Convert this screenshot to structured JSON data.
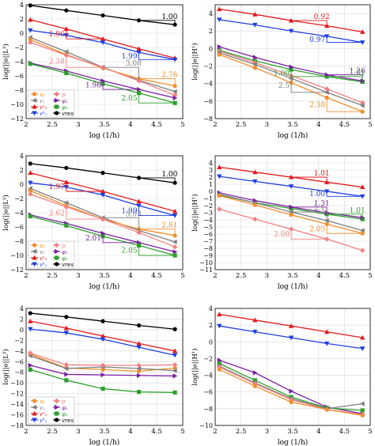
{
  "colors": {
    "u": "#f28e2b",
    "p": "#f28080",
    "v": "#7f7f7f",
    "phi1": "#7b1fa2",
    "phi": "#2ca02c",
    "vres": "#000000",
    "vA2": "#e41a1c",
    "vB1": "#1f3fe0"
  },
  "legend": {
    "u": "u₁",
    "p": "p",
    "v": "v₁",
    "phi1": "φ₁",
    "phi": "φ₀",
    "vres": "vres",
    "vA2": "vᵃ₂",
    "vB1": "vᵇ₁"
  },
  "chart_data": [
    {
      "type": "line",
      "xlabel": "log (1/h)",
      "ylabel": "log(||e||L²)",
      "xlim": [
        2,
        5
      ],
      "ylim": [
        -12,
        4
      ],
      "xticks": [
        "2",
        "2.5",
        "3",
        "3.5",
        "4",
        "4.5",
        "5"
      ],
      "yticks": [
        "4",
        "2",
        "0",
        "−2",
        "−4",
        "−6",
        "−8",
        "−10",
        "−12"
      ],
      "legend": true,
      "x": [
        2.08,
        2.77,
        3.47,
        4.16,
        4.85
      ],
      "series": [
        {
          "key": "vres",
          "values": [
            3.9,
            3.2,
            2.5,
            1.8,
            1.2
          ]
        },
        {
          "key": "vA2",
          "values": [
            1.9,
            0.6,
            -0.8,
            -2.2,
            -3.5
          ]
        },
        {
          "key": "vB1",
          "values": [
            0.4,
            -0.3,
            -1.3,
            -2.7,
            -3.7
          ]
        },
        {
          "key": "v",
          "values": [
            -0.6,
            -2.6,
            -4.8,
            -6.6,
            -8.2
          ]
        },
        {
          "key": "u",
          "values": [
            -0.9,
            -3.0,
            -4.9,
            -6.4,
            -7.4
          ]
        },
        {
          "key": "p",
          "values": [
            -1.3,
            -3.1,
            -4.8,
            -6.7,
            -8.7
          ]
        },
        {
          "key": "phi1",
          "values": [
            -4.2,
            -5.3,
            -6.7,
            -7.9,
            -9.1
          ]
        },
        {
          "key": "phi",
          "values": [
            -4.3,
            -5.6,
            -7.1,
            -8.4,
            -9.8
          ]
        }
      ],
      "rates": [
        "1.00",
        "1.96",
        "3.08",
        "1.99",
        "2.38",
        "2.76",
        "1.96",
        "2.05"
      ]
    },
    {
      "type": "line",
      "xlabel": "log (1/h)",
      "ylabel": "log(||e||H¹)",
      "xlim": [
        2,
        5
      ],
      "ylim": [
        -8,
        5
      ],
      "xticks": [
        "2",
        "2.5",
        "3",
        "3.5",
        "4",
        "4.5",
        "5"
      ],
      "yticks": [
        "4",
        "2",
        "0",
        "−2",
        "−4",
        "−6",
        "−8"
      ],
      "legend": false,
      "x": [
        2.08,
        2.77,
        3.47,
        4.16,
        4.85
      ],
      "series": [
        {
          "key": "vA2",
          "values": [
            4.5,
            3.9,
            3.2,
            2.6,
            1.9
          ]
        },
        {
          "key": "vB1",
          "values": [
            3.3,
            2.7,
            2.0,
            1.4,
            0.7
          ]
        },
        {
          "key": "phi",
          "values": [
            -0.2,
            -1.4,
            -2.4,
            -3.2,
            -3.8
          ]
        },
        {
          "key": "phi1",
          "values": [
            0.2,
            -1.0,
            -2.1,
            -3.0,
            -3.7
          ]
        },
        {
          "key": "p",
          "values": [
            -0.3,
            -1.6,
            -3.1,
            -4.6,
            -6.2
          ]
        },
        {
          "key": "v",
          "values": [
            -0.5,
            -1.8,
            -3.4,
            -5.0,
            -6.5
          ]
        },
        {
          "key": "u",
          "values": [
            -0.7,
            -2.2,
            -3.9,
            -5.6,
            -7.2
          ]
        }
      ],
      "rates": [
        "0.92",
        "0.97",
        "1.00",
        "1.26",
        "1.01",
        "2.5",
        "2.38"
      ]
    },
    {
      "type": "line",
      "xlabel": "log (1/h)",
      "ylabel": "log(||e||L²)",
      "xlim": [
        2,
        5
      ],
      "ylim": [
        -12,
        4
      ],
      "xticks": [
        "2",
        "2.5",
        "3",
        "3.5",
        "4",
        "4.5",
        "5"
      ],
      "yticks": [
        "4",
        "2",
        "0",
        "−2",
        "−4",
        "−6",
        "−8",
        "−10",
        "−12"
      ],
      "legend": true,
      "x": [
        2.08,
        2.77,
        3.47,
        4.16,
        4.85
      ],
      "series": [
        {
          "key": "vres",
          "values": [
            2.9,
            2.3,
            1.6,
            0.9,
            0.2
          ]
        },
        {
          "key": "vA2",
          "values": [
            1.6,
            0.3,
            -1.0,
            -2.4,
            -3.8
          ]
        },
        {
          "key": "vB1",
          "values": [
            0.2,
            -0.4,
            -1.5,
            -3.0,
            -4.4
          ]
        },
        {
          "key": "v",
          "values": [
            -0.6,
            -2.6,
            -4.7,
            -6.5,
            -8.1
          ]
        },
        {
          "key": "u",
          "values": [
            -0.9,
            -3.0,
            -4.9,
            -6.3,
            -7.2
          ]
        },
        {
          "key": "p",
          "values": [
            -1.4,
            -3.2,
            -4.9,
            -6.8,
            -8.8
          ]
        },
        {
          "key": "phi1",
          "values": [
            -4.3,
            -5.5,
            -6.9,
            -8.2,
            -9.5
          ]
        },
        {
          "key": "phi",
          "values": [
            -4.5,
            -5.8,
            -7.3,
            -8.6,
            -10.0
          ]
        }
      ],
      "rates": [
        "1.00",
        "1.97",
        "3.03",
        "1.99",
        "2.62",
        "2.81",
        "2.01",
        "2.05"
      ]
    },
    {
      "type": "line",
      "xlabel": "log (1/h)",
      "ylabel": "log(||e||H¹)",
      "xlim": [
        2,
        5
      ],
      "ylim": [
        -11,
        5
      ],
      "xticks": [
        "2",
        "2.5",
        "3",
        "3.5",
        "4",
        "4.5",
        "5"
      ],
      "yticks": [
        "4",
        "3",
        "2",
        "1",
        "0",
        "−1",
        "−2",
        "−3",
        "−4",
        "−5",
        "−6",
        "−7",
        "−8",
        "−9",
        "−10",
        "−11"
      ],
      "legend": false,
      "x": [
        2.08,
        2.77,
        3.47,
        4.16,
        4.85
      ],
      "series": [
        {
          "key": "vA2",
          "values": [
            3.4,
            2.7,
            2.0,
            1.3,
            0.6
          ]
        },
        {
          "key": "vB1",
          "values": [
            2.1,
            1.4,
            0.7,
            0.0,
            -0.7
          ]
        },
        {
          "key": "phi",
          "values": [
            -0.5,
            -1.6,
            -2.4,
            -3.2,
            -3.9
          ]
        },
        {
          "key": "phi1",
          "values": [
            -0.2,
            -1.3,
            -2.2,
            -3.0,
            -3.7
          ]
        },
        {
          "key": "v",
          "values": [
            -0.4,
            -1.6,
            -2.9,
            -4.1,
            -5.5
          ]
        },
        {
          "key": "u",
          "values": [
            -0.6,
            -1.9,
            -3.3,
            -4.6,
            -5.9
          ]
        },
        {
          "key": "p",
          "values": [
            -2.5,
            -3.9,
            -5.3,
            -6.7,
            -8.3
          ]
        }
      ],
      "rates": [
        "1.01",
        "1.00",
        "1.31",
        "2.1",
        "1.01",
        "2.05",
        "2.00"
      ]
    },
    {
      "type": "line",
      "xlabel": "log (1/h)",
      "ylabel": "log(||e||L²)",
      "xlim": [
        2,
        5
      ],
      "ylim": [
        -18,
        4
      ],
      "xticks": [
        "2",
        "2.5",
        "3",
        "3.5",
        "4",
        "4.5",
        "5"
      ],
      "yticks": [
        "4",
        "2",
        "0",
        "−2",
        "−4",
        "−6",
        "−8",
        "−10",
        "−12",
        "−14",
        "−16",
        "−18"
      ],
      "legend": true,
      "x": [
        2.08,
        2.77,
        3.47,
        4.16,
        4.85
      ],
      "series": [
        {
          "key": "vres",
          "values": [
            3.1,
            2.4,
            1.6,
            0.8,
            0.1
          ]
        },
        {
          "key": "vA2",
          "values": [
            1.6,
            0.3,
            -1.2,
            -2.6,
            -4.0
          ]
        },
        {
          "key": "vB1",
          "values": [
            0.1,
            -0.6,
            -1.8,
            -3.3,
            -4.8
          ]
        },
        {
          "key": "u",
          "values": [
            -4.6,
            -7.2,
            -7.5,
            -7.8,
            -7.2
          ]
        },
        {
          "key": "v",
          "values": [
            -4.9,
            -7.3,
            -7.0,
            -7.3,
            -7.7
          ]
        },
        {
          "key": "p",
          "values": [
            -4.4,
            -6.6,
            -6.7,
            -6.7,
            -6.6
          ]
        },
        {
          "key": "phi1",
          "values": [
            -6.7,
            -8.4,
            -8.5,
            -8.6,
            -8.7
          ]
        },
        {
          "key": "phi",
          "values": [
            -7.5,
            -9.5,
            -11.1,
            -11.7,
            -11.8
          ]
        }
      ],
      "rates": []
    },
    {
      "type": "line",
      "xlabel": "log (1/h)",
      "ylabel": "log(||e||H¹)",
      "xlim": [
        2,
        5
      ],
      "ylim": [
        -10,
        4
      ],
      "xticks": [
        "2",
        "2.5",
        "3",
        "3.5",
        "4",
        "4.5",
        "5"
      ],
      "yticks": [
        "4",
        "2",
        "0",
        "−2",
        "−4",
        "−6",
        "−8",
        "−10"
      ],
      "legend": false,
      "x": [
        2.08,
        2.77,
        3.47,
        4.16,
        4.85
      ],
      "series": [
        {
          "key": "vA2",
          "values": [
            3.3,
            2.6,
            1.9,
            1.2,
            0.5
          ]
        },
        {
          "key": "vB1",
          "values": [
            1.9,
            1.2,
            0.5,
            -0.2,
            -0.8
          ]
        },
        {
          "key": "phi1",
          "values": [
            -2.2,
            -3.7,
            -5.9,
            -7.8,
            -8.6
          ]
        },
        {
          "key": "phi",
          "values": [
            -2.6,
            -4.6,
            -6.6,
            -7.9,
            -8.2
          ]
        },
        {
          "key": "v",
          "values": [
            -2.9,
            -4.9,
            -6.8,
            -8.0,
            -7.4
          ]
        },
        {
          "key": "p",
          "values": [
            -3.0,
            -5.0,
            -6.9,
            -8.1,
            -8.7
          ]
        },
        {
          "key": "u",
          "values": [
            -3.3,
            -5.3,
            -7.2,
            -8.1,
            -8.8
          ]
        }
      ],
      "rates": []
    }
  ]
}
